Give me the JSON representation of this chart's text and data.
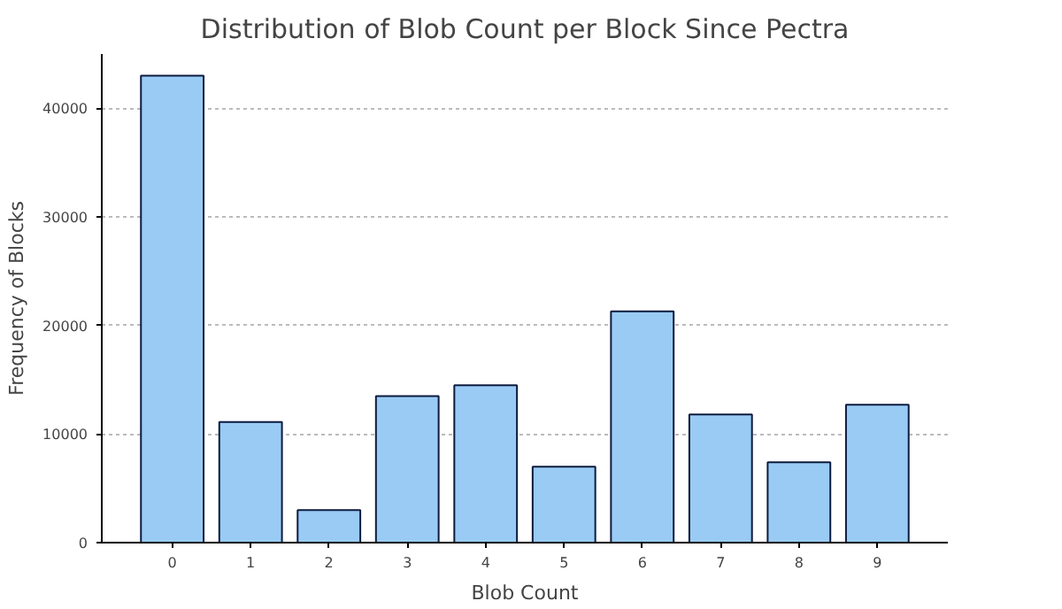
{
  "chart_data": {
    "type": "bar",
    "title": "Distribution of Blob Count per Block Since Pectra",
    "xlabel": "Blob Count",
    "ylabel": "Frequency of Blocks",
    "x": [
      0,
      1,
      2,
      3,
      4,
      5,
      6,
      7,
      8,
      9
    ],
    "values": [
      43000,
      11100,
      3000,
      13500,
      14500,
      7000,
      21300,
      11800,
      7400,
      12700
    ],
    "color": "#99cbf5",
    "xlim": [
      -0.9,
      9.9
    ],
    "xticks": [
      0,
      1,
      2,
      3,
      4,
      5,
      6,
      7,
      8,
      9
    ],
    "ylim": [
      0,
      45000
    ],
    "yticks": [
      0,
      10000,
      20000,
      30000,
      40000
    ],
    "grid": "y"
  }
}
